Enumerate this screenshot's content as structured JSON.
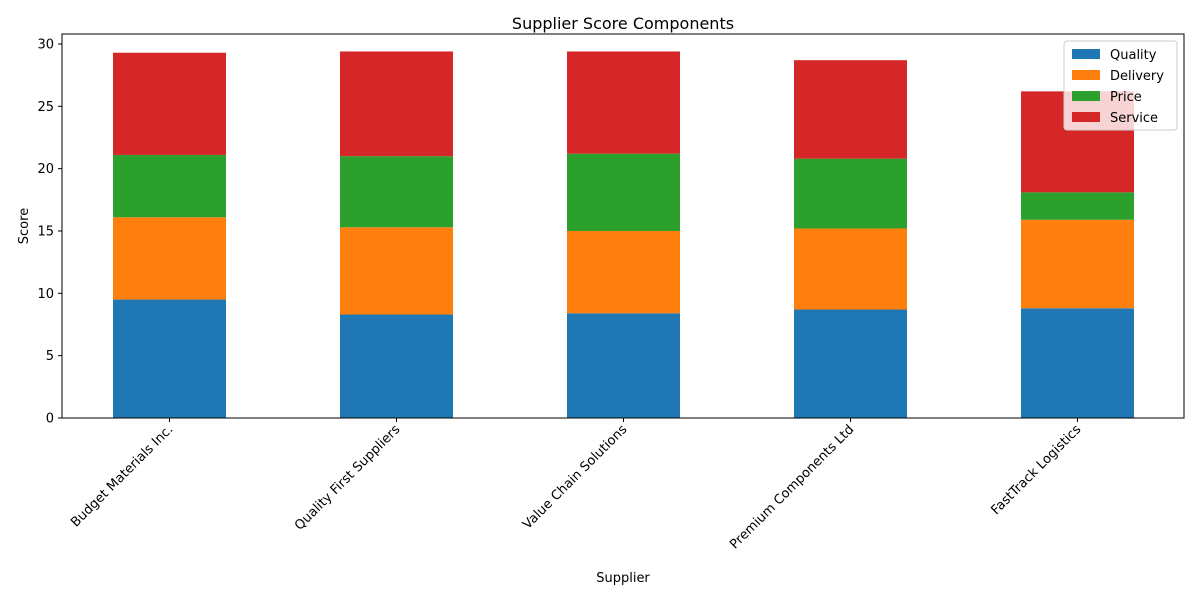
{
  "chart_data": {
    "type": "bar",
    "stacked": true,
    "title": "Supplier Score Components",
    "xlabel": "Supplier",
    "ylabel": "Score",
    "ylim": [
      0,
      30.8
    ],
    "yticks": [
      0,
      5,
      10,
      15,
      20,
      25,
      30
    ],
    "grid": false,
    "legend_position": "top-right",
    "categories": [
      "Budget Materials Inc.",
      "Quality First Suppliers",
      "Value Chain Solutions",
      "Premium Components Ltd",
      "FastTrack Logistics"
    ],
    "series": [
      {
        "name": "Quality",
        "color": "#1f77b4",
        "values": [
          9.5,
          8.3,
          8.4,
          8.7,
          8.8
        ]
      },
      {
        "name": "Delivery",
        "color": "#ff7f0e",
        "values": [
          6.6,
          7.0,
          6.6,
          6.5,
          7.1
        ]
      },
      {
        "name": "Price",
        "color": "#2ca02c",
        "values": [
          5.0,
          5.7,
          6.2,
          5.6,
          2.2
        ]
      },
      {
        "name": "Service",
        "color": "#d62728",
        "values": [
          8.2,
          8.4,
          8.2,
          7.9,
          8.1
        ]
      }
    ]
  }
}
